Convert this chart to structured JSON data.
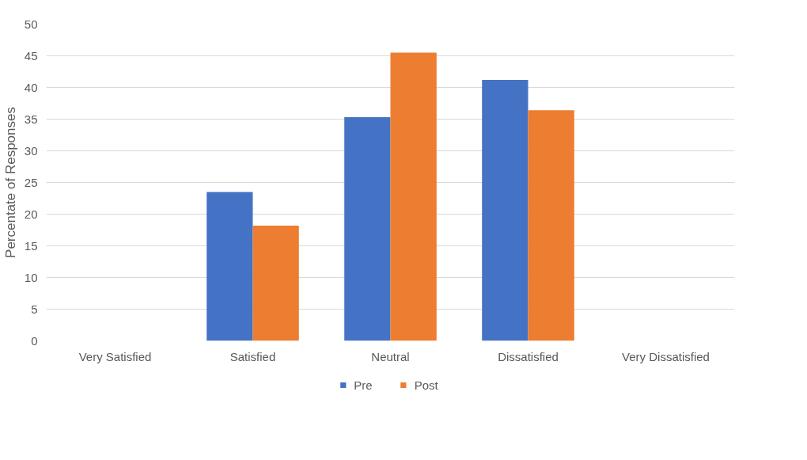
{
  "chart_data": {
    "type": "bar",
    "ylabel": "Percentate of Responses",
    "categories": [
      "Very Satisfied",
      "Satisfied",
      "Neutral",
      "Dissatisfied",
      "Very Dissatisfied"
    ],
    "series": [
      {
        "name": "Pre",
        "color": "#4472c4",
        "values": [
          0,
          23.5,
          35.3,
          41.2,
          0
        ]
      },
      {
        "name": "Post",
        "color": "#ed7d31",
        "values": [
          0,
          18.2,
          45.5,
          36.4,
          0
        ]
      }
    ],
    "ylim": [
      0,
      50
    ],
    "yticks": [
      0,
      5,
      10,
      15,
      20,
      25,
      30,
      35,
      40,
      45,
      50
    ],
    "grid": "y",
    "legend": "bottom"
  }
}
